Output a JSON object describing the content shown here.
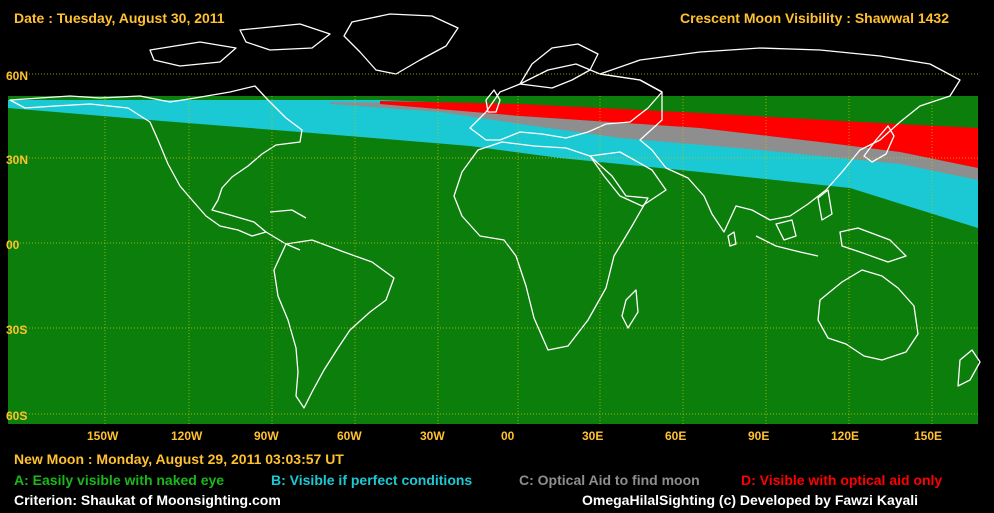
{
  "header": {
    "date": "Date : Tuesday, August 30, 2011",
    "title": "Crescent Moon Visibility : Shawwal  1432"
  },
  "map": {
    "lat_labels": [
      "60N",
      "30N",
      "00",
      "30S",
      "60S"
    ],
    "lon_labels": [
      "150W",
      "120W",
      "90W",
      "60W",
      "30W",
      "00",
      "30E",
      "60E",
      "90E",
      "120E",
      "150E"
    ]
  },
  "footer": {
    "new_moon": "New Moon : Monday, August 29, 2011  03:03:57  UT",
    "criterion": "Criterion: Shaukat of Moonsighting.com",
    "credit": "OmegaHilalSighting  (c)  Developed by Fawzi Kayali"
  },
  "legend": {
    "a": "A: Easily visible with naked eye",
    "b": "B: Visible if perfect conditions",
    "c": "C: Optical Aid to find moon",
    "d": "D: Visible with optical aid only"
  },
  "colors": {
    "zone_a": "#0c7e0c",
    "zone_b": "#1bc9d4",
    "zone_c": "#8e8e8e",
    "zone_d": "#ff0000",
    "label": "#ffc12e",
    "legend_a": "#19b919",
    "grid": "#c8c800",
    "coast": "#ffffff"
  }
}
